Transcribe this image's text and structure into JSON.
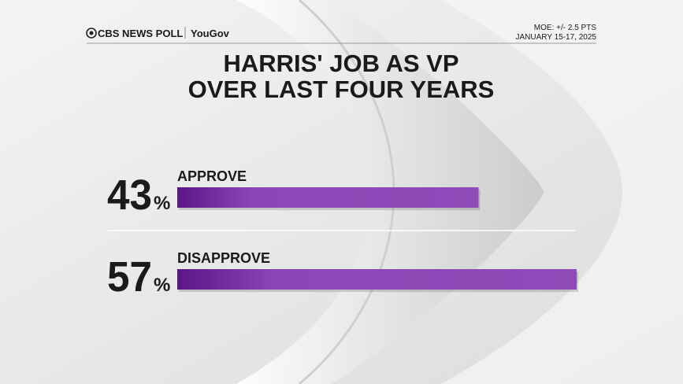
{
  "chart_data": {
    "type": "bar",
    "source": [
      "CBS NEWS POLL",
      "YouGov"
    ],
    "notes": [
      "MOE: +/- 2.5 PTS",
      "JANUARY 15-17, 2025"
    ],
    "title": [
      "HARRIS' JOB AS VP",
      "OVER LAST FOUR YEARS"
    ],
    "categories": [
      "APPROVE",
      "DISAPPROVE"
    ],
    "values": [
      43,
      57
    ],
    "value_suffix": "%",
    "color": "#8b47b5"
  }
}
